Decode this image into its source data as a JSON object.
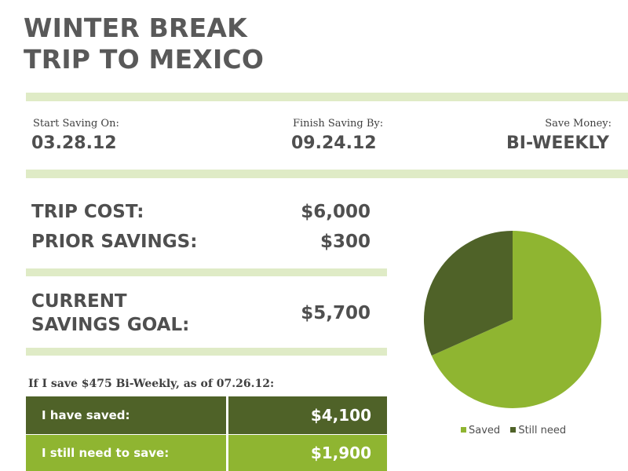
{
  "title": {
    "line1": "WINTER BREAK",
    "line2": "TRIP TO MEXICO"
  },
  "schedule": {
    "start_label": "Start Saving On:",
    "start_value": "03.28.12",
    "finish_label": "Finish Saving By:",
    "finish_value": "09.24.12",
    "frequency_label": "Save Money:",
    "frequency_value": "BI-WEEKLY"
  },
  "costs": {
    "trip_cost_label": "TRIP COST:",
    "trip_cost_value": "$6,000",
    "prior_savings_label": "PRIOR SAVINGS:",
    "prior_savings_value": "$300",
    "goal_label_line1": "CURRENT",
    "goal_label_line2": "SAVINGS GOAL:",
    "goal_value": "$5,700"
  },
  "status": {
    "caption": "If I save $475 Bi-Weekly, as of 07.26.12:",
    "saved_label": "I have saved:",
    "saved_value": "$4,100",
    "need_label": "I still need to save:",
    "need_value": "$1,900"
  },
  "colors": {
    "band": "#dfebc6",
    "dark_green": "#4f6228",
    "light_green": "#8fb531",
    "text": "#4f4f4f"
  },
  "chart_data": {
    "type": "pie",
    "title": "",
    "series": [
      {
        "name": "Saved",
        "value": 4100,
        "color": "#8fb531"
      },
      {
        "name": "Still need",
        "value": 1900,
        "color": "#4f6228"
      }
    ],
    "legend_placement": "bottom"
  }
}
